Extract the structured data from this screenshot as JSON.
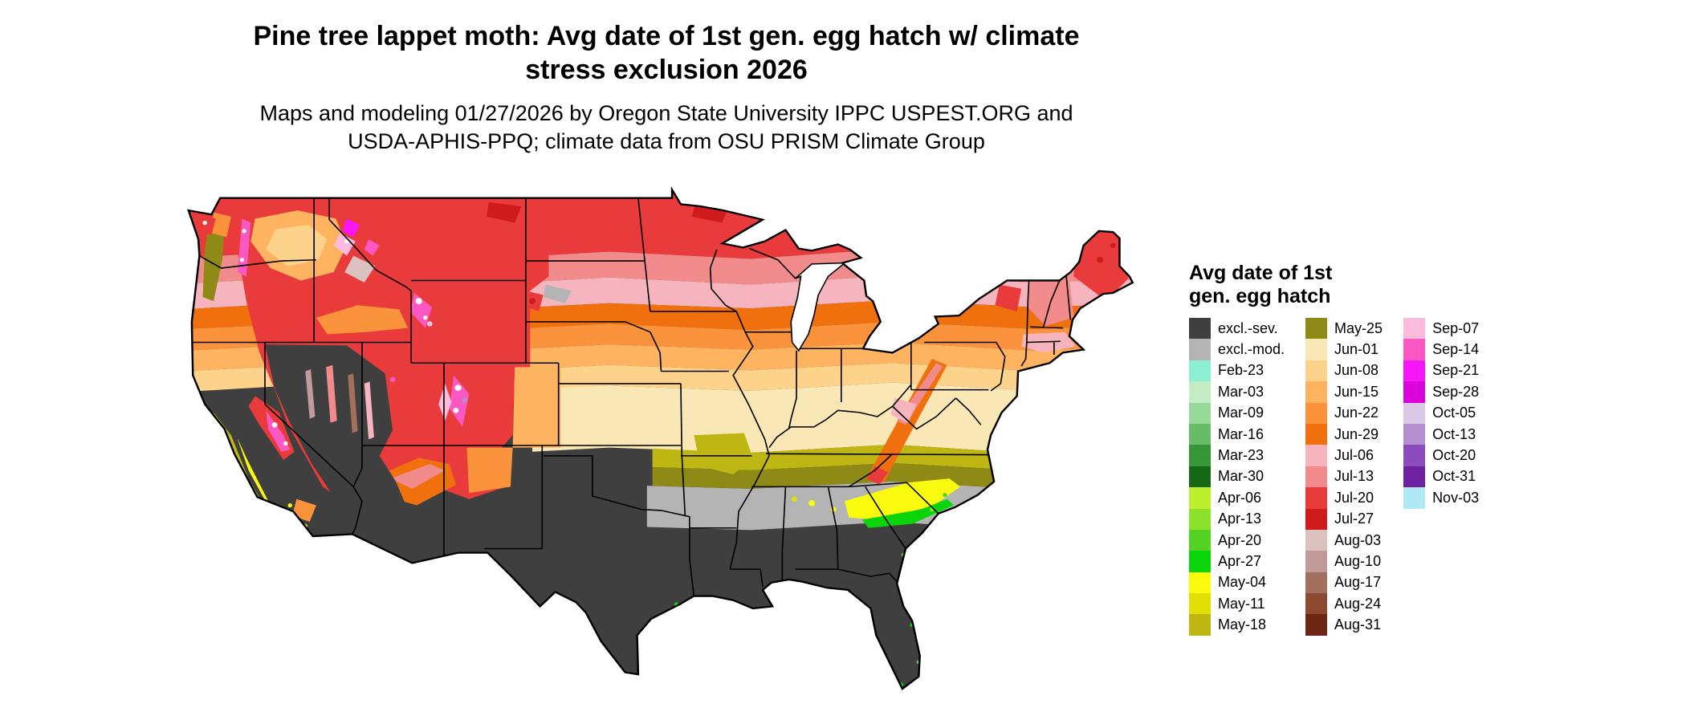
{
  "title": {
    "line1": "Pine tree lappet moth: Avg date of 1st gen. egg hatch w/ climate",
    "line2": "stress exclusion 2026"
  },
  "subtitle": {
    "line1": "Maps and modeling 01/27/2026 by Oregon State University IPPC USPEST.ORG and",
    "line2": "USDA-APHIS-PPQ; climate data from OSU PRISM Climate Group"
  },
  "legend": {
    "title_line1": "Avg date of 1st",
    "title_line2": "gen. egg hatch",
    "columns": [
      [
        {
          "key": "excl_sev",
          "label": "excl.-sev.",
          "color": "#3f3f3f"
        },
        {
          "key": "excl_mod",
          "label": "excl.-mod.",
          "color": "#b4b4b4"
        },
        {
          "key": "feb23",
          "label": "Feb-23",
          "color": "#8ceed2"
        },
        {
          "key": "mar03",
          "label": "Mar-03",
          "color": "#c4ecc4"
        },
        {
          "key": "mar09",
          "label": "Mar-09",
          "color": "#98d898"
        },
        {
          "key": "mar16",
          "label": "Mar-16",
          "color": "#68bc68"
        },
        {
          "key": "mar23",
          "label": "Mar-23",
          "color": "#379737"
        },
        {
          "key": "mar30",
          "label": "Mar-30",
          "color": "#156915"
        },
        {
          "key": "apr06",
          "label": "Apr-06",
          "color": "#bdef2f"
        },
        {
          "key": "apr13",
          "label": "Apr-13",
          "color": "#8ce22b"
        },
        {
          "key": "apr20",
          "label": "Apr-20",
          "color": "#54d324"
        },
        {
          "key": "apr27",
          "label": "Apr-27",
          "color": "#0ad50a"
        },
        {
          "key": "may04",
          "label": "May-04",
          "color": "#fafa0f"
        },
        {
          "key": "may11",
          "label": "May-11",
          "color": "#e3de06"
        },
        {
          "key": "may18",
          "label": "May-18",
          "color": "#bdb613"
        }
      ],
      [
        {
          "key": "may25",
          "label": "May-25",
          "color": "#8f8a16"
        },
        {
          "key": "jun01",
          "label": "Jun-01",
          "color": "#fae7b6"
        },
        {
          "key": "jun08",
          "label": "Jun-08",
          "color": "#fdd38c"
        },
        {
          "key": "jun15",
          "label": "Jun-15",
          "color": "#fdb360"
        },
        {
          "key": "jun22",
          "label": "Jun-22",
          "color": "#fb923c"
        },
        {
          "key": "jun29",
          "label": "Jun-29",
          "color": "#f0700e"
        },
        {
          "key": "jul06",
          "label": "Jul-06",
          "color": "#f6b4be"
        },
        {
          "key": "jul13",
          "label": "Jul-13",
          "color": "#f28b8b"
        },
        {
          "key": "jul20",
          "label": "Jul-20",
          "color": "#e93b3b"
        },
        {
          "key": "jul27",
          "label": "Jul-27",
          "color": "#cf1b1b"
        },
        {
          "key": "aug03",
          "label": "Aug-03",
          "color": "#dcc1c1"
        },
        {
          "key": "aug10",
          "label": "Aug-10",
          "color": "#c19a9a"
        },
        {
          "key": "aug17",
          "label": "Aug-17",
          "color": "#a3705f"
        },
        {
          "key": "aug24",
          "label": "Aug-24",
          "color": "#8c4a30"
        },
        {
          "key": "aug31",
          "label": "Aug-31",
          "color": "#6e2514"
        }
      ],
      [
        {
          "key": "sep07",
          "label": "Sep-07",
          "color": "#fcbadd"
        },
        {
          "key": "sep14",
          "label": "Sep-14",
          "color": "#fb58c4"
        },
        {
          "key": "sep21",
          "label": "Sep-21",
          "color": "#f716f7"
        },
        {
          "key": "sep28",
          "label": "Sep-28",
          "color": "#d904d9"
        },
        {
          "key": "oct05",
          "label": "Oct-05",
          "color": "#dbc7e6"
        },
        {
          "key": "oct13",
          "label": "Oct-13",
          "color": "#b48fd0"
        },
        {
          "key": "oct20",
          "label": "Oct-20",
          "color": "#8d4cbc"
        },
        {
          "key": "oct31",
          "label": "Oct-31",
          "color": "#6f22a0"
        },
        {
          "key": "nov03",
          "label": "Nov-03",
          "color": "#aee9f5"
        }
      ]
    ]
  },
  "map": {
    "no_data_color": "#ffffff",
    "border_color": "#000000"
  }
}
